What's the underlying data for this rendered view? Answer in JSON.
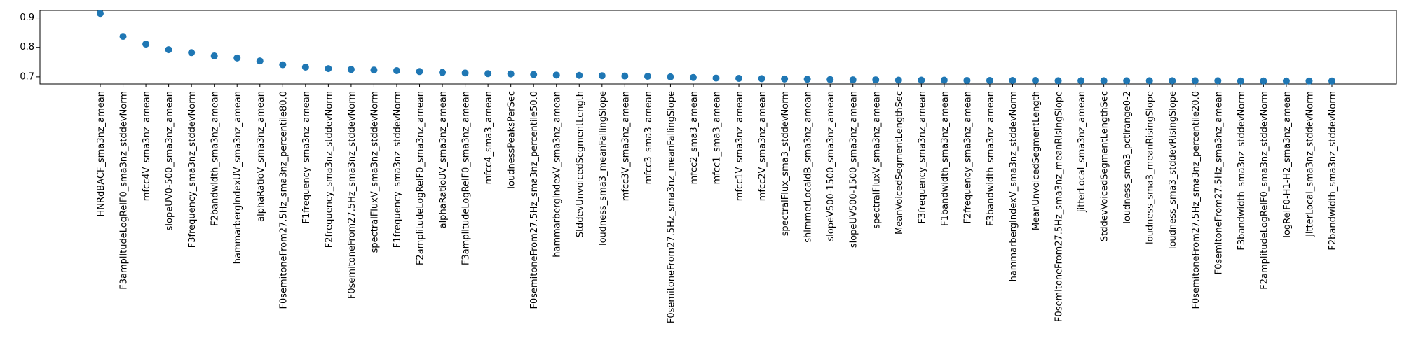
{
  "chart_data": {
    "type": "scatter",
    "categories": [
      "HNRdBACF_sma3nz_amean",
      "F3amplitudeLogRelF0_sma3nz_stddevNorm",
      "mfcc4V_sma3nz_amean",
      "slopeUV0-500_sma3nz_amean",
      "F3frequency_sma3nz_stddevNorm",
      "F2bandwidth_sma3nz_amean",
      "hammarbergIndexUV_sma3nz_amean",
      "alphaRatioV_sma3nz_amean",
      "F0semitoneFrom27.5Hz_sma3nz_percentile80.0",
      "F1frequency_sma3nz_amean",
      "F2frequency_sma3nz_stddevNorm",
      "F0semitoneFrom27.5Hz_sma3nz_stddevNorm",
      "spectralFluxV_sma3nz_stddevNorm",
      "F1frequency_sma3nz_stddevNorm",
      "F2amplitudeLogRelF0_sma3nz_amean",
      "alphaRatioUV_sma3nz_amean",
      "F3amplitudeLogRelF0_sma3nz_amean",
      "mfcc4_sma3_amean",
      "loudnessPeaksPerSec",
      "F0semitoneFrom27.5Hz_sma3nz_percentile50.0",
      "hammarbergIndexV_sma3nz_amean",
      "StddevUnvoicedSegmentLength",
      "loudness_sma3_meanFallingSlope",
      "mfcc3V_sma3nz_amean",
      "mfcc3_sma3_amean",
      "F0semitoneFrom27.5Hz_sma3nz_meanFallingSlope",
      "mfcc2_sma3_amean",
      "mfcc1_sma3_amean",
      "mfcc1V_sma3nz_amean",
      "mfcc2V_sma3nz_amean",
      "spectralFlux_sma3_stddevNorm",
      "shimmerLocaldB_sma3nz_amean",
      "slopeV500-1500_sma3nz_amean",
      "slopeUV500-1500_sma3nz_amean",
      "spectralFluxV_sma3nz_amean",
      "MeanVoicedSegmentLengthSec",
      "F3frequency_sma3nz_amean",
      "F1bandwidth_sma3nz_amean",
      "F2frequency_sma3nz_amean",
      "F3bandwidth_sma3nz_amean",
      "hammarbergIndexV_sma3nz_stddevNorm",
      "MeanUnvoicedSegmentLength",
      "F0semitoneFrom27.5Hz_sma3nz_meanRisingSlope",
      "jitterLocal_sma3nz_amean",
      "StddevVoicedSegmentLengthSec",
      "loudness_sma3_pctlrange0-2",
      "loudness_sma3_meanRisingSlope",
      "loudness_sma3_stddevRisingSlope",
      "F0semitoneFrom27.5Hz_sma3nz_percentile20.0",
      "F0semitoneFrom27.5Hz_sma3nz_amean",
      "F3bandwidth_sma3nz_stddevNorm",
      "F2amplitudeLogRelF0_sma3nz_stddevNorm",
      "logRelF0-H1-H2_sma3nz_amean",
      "jitterLocal_sma3nz_stddevNorm",
      "F2bandwidth_sma3nz_stddevNorm"
    ],
    "values": [
      0.915,
      0.837,
      0.811,
      0.792,
      0.782,
      0.771,
      0.764,
      0.754,
      0.741,
      0.733,
      0.728,
      0.725,
      0.723,
      0.721,
      0.718,
      0.715,
      0.713,
      0.711,
      0.71,
      0.708,
      0.706,
      0.705,
      0.704,
      0.703,
      0.702,
      0.7,
      0.698,
      0.696,
      0.695,
      0.694,
      0.693,
      0.692,
      0.691,
      0.69,
      0.69,
      0.689,
      0.689,
      0.689,
      0.688,
      0.688,
      0.688,
      0.688,
      0.687,
      0.687,
      0.687,
      0.687,
      0.687,
      0.687,
      0.687,
      0.687,
      0.686,
      0.686,
      0.686,
      0.686,
      0.686
    ],
    "yticks": [
      "0.7",
      "0.8",
      "0.9"
    ],
    "ylim": [
      0.676,
      0.925
    ],
    "title": "",
    "xlabel": "",
    "ylabel": "",
    "grid": false,
    "marker_color": "#1f77b4"
  }
}
